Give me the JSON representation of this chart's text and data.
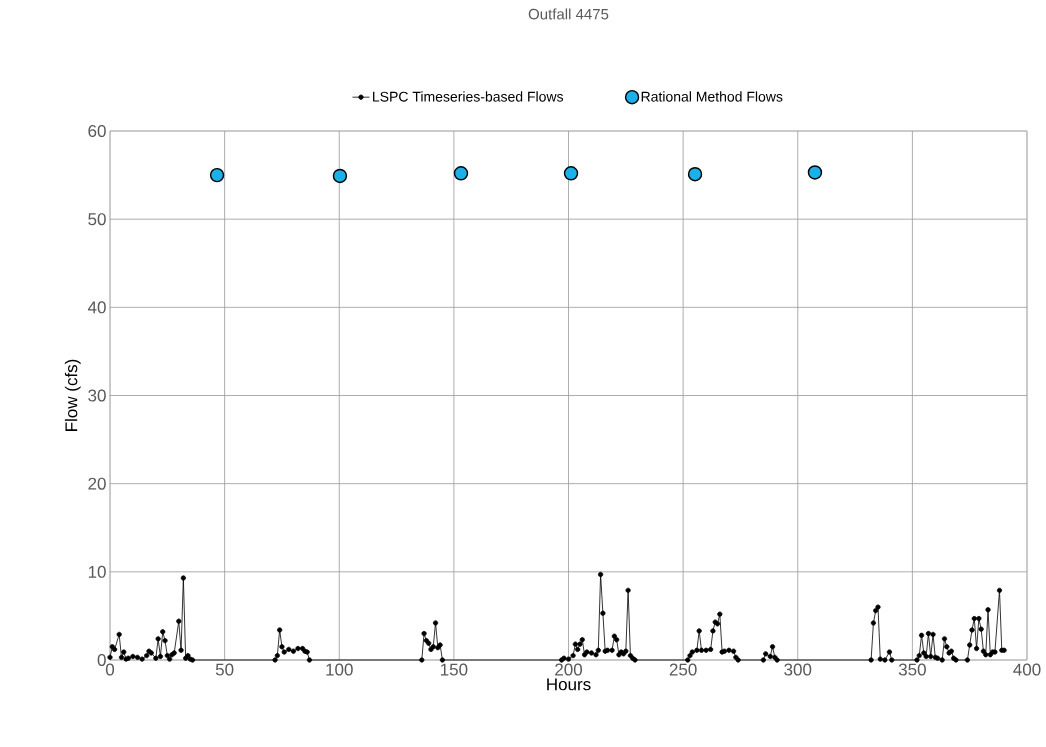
{
  "chart_data": {
    "type": "line",
    "title": "Outfall 4475",
    "xlabel": "Hours",
    "ylabel": "Flow (cfs)",
    "xlim": [
      0,
      400
    ],
    "ylim": [
      0,
      60
    ],
    "xticks": [
      0,
      50,
      100,
      150,
      200,
      250,
      300,
      350,
      400
    ],
    "yticks": [
      0,
      10,
      20,
      30,
      40,
      50,
      60
    ],
    "grid": true,
    "legend": "top",
    "series": [
      {
        "name": "LSPC Timeseries-based Flows",
        "color": "#000000",
        "marker": "circle",
        "x": [
          0,
          1,
          2,
          4,
          5,
          6,
          7,
          8,
          10,
          12,
          14,
          16,
          17,
          18,
          20,
          21,
          22,
          23,
          24,
          25,
          26,
          27,
          28,
          30,
          31,
          32,
          33,
          34,
          35,
          36,
          72,
          73,
          74,
          75,
          76,
          78,
          80,
          82,
          84,
          85,
          86,
          87,
          136,
          137,
          138,
          139,
          140,
          141,
          142,
          143,
          144,
          145,
          197,
          198,
          200,
          202,
          203,
          204,
          205,
          206,
          207,
          208,
          210,
          212,
          213,
          214,
          215,
          216,
          217,
          219,
          220,
          221,
          222,
          223,
          224,
          225,
          226,
          227,
          228,
          229,
          252,
          253,
          254,
          256,
          257,
          258,
          260,
          262,
          263,
          264,
          265,
          266,
          267,
          268,
          270,
          272,
          273,
          274,
          285,
          286,
          288,
          289,
          290,
          291,
          332,
          333,
          334,
          335,
          336,
          338,
          340,
          341,
          352,
          353,
          354,
          355,
          356,
          357,
          358,
          359,
          360,
          361,
          363,
          364,
          365,
          366,
          367,
          368,
          369,
          374,
          375,
          376,
          377,
          378,
          379,
          380,
          381,
          382,
          383,
          384,
          385,
          386,
          388,
          389,
          390
        ],
        "values": [
          0.3,
          1.5,
          1.2,
          2.9,
          0.3,
          0.9,
          0.1,
          0.2,
          0.4,
          0.3,
          0.1,
          0.5,
          1.0,
          0.8,
          0.2,
          2.4,
          0.4,
          3.2,
          2.2,
          0.5,
          0.1,
          0.6,
          0.8,
          4.4,
          1.1,
          9.3,
          0.2,
          0.5,
          0.1,
          0,
          0,
          0.5,
          3.4,
          1.5,
          0.9,
          1.2,
          1.0,
          1.3,
          1.3,
          1.0,
          0.9,
          0,
          0,
          3.0,
          2.2,
          1.9,
          1.2,
          1.5,
          4.2,
          1.4,
          1.7,
          0,
          0,
          0.2,
          0.1,
          0.5,
          1.8,
          1.2,
          1.8,
          2.3,
          0.6,
          0.9,
          0.8,
          0.6,
          1.1,
          9.7,
          5.3,
          1.0,
          1.1,
          1.1,
          2.7,
          2.3,
          0.6,
          0.9,
          0.7,
          1.0,
          7.9,
          0.5,
          0.2,
          0,
          0,
          0.5,
          0.9,
          1.1,
          3.3,
          1.1,
          1.1,
          1.2,
          3.3,
          4.3,
          4.1,
          5.2,
          0.9,
          1.0,
          1.1,
          1.0,
          0.3,
          0,
          0,
          0.7,
          0.4,
          1.5,
          0.3,
          0,
          0,
          4.2,
          5.6,
          6.0,
          0.1,
          0,
          0.9,
          0,
          0,
          0.5,
          2.8,
          0.8,
          0.4,
          3.0,
          0.4,
          2.9,
          0.3,
          0.2,
          0,
          2.4,
          1.5,
          0.8,
          1.0,
          0.2,
          0,
          0,
          1.7,
          3.4,
          4.7,
          1.3,
          4.7,
          3.5,
          1.0,
          0.6,
          5.7,
          0.6,
          0.9,
          0.9,
          7.9,
          1.1,
          1.1
        ]
      },
      {
        "name": "Rational Method Flows",
        "type": "scatter",
        "color": "#1ab0e8",
        "marker": "circle",
        "x": [
          46.7,
          100.3,
          153.1,
          201.1,
          255.2,
          307.5
        ],
        "values": [
          55.0,
          54.9,
          55.2,
          55.2,
          55.1,
          55.3
        ]
      }
    ]
  }
}
